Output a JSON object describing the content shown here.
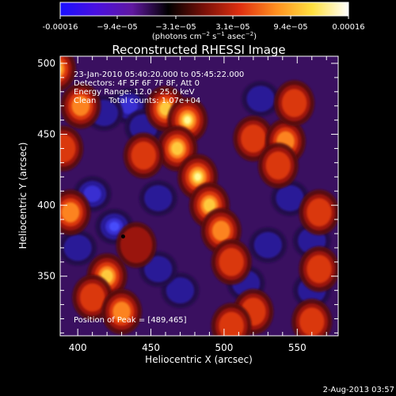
{
  "chart_data": {
    "type": "heatmap",
    "title": "Reconstructed RHESSI Image",
    "xlabel": "Heliocentric X (arcsec)",
    "ylabel": "Heliocentric Y (arcsec)",
    "xlim": [
      388,
      578
    ],
    "ylim": [
      308,
      505
    ],
    "x_ticks": [
      400,
      450,
      500,
      550
    ],
    "x_tick_labels": [
      "400",
      "450",
      "500",
      "550"
    ],
    "y_ticks": [
      350,
      400,
      450,
      500
    ],
    "y_tick_labels": [
      "350",
      "400",
      "450",
      "500"
    ],
    "colorbar": {
      "range": [
        -0.00016,
        0.00016
      ],
      "tick_labels": [
        "-0.00016",
        "−9.4e−05",
        "−3.1e−05",
        "3.1e−05",
        "9.4e−05",
        "0.00016"
      ],
      "units_prefix": "(photons cm",
      "units_exp1": "−2",
      "units_mid": " s",
      "units_exp2": "−1",
      "units_mid2": " asec",
      "units_exp3": "−2",
      "units_suffix": ")",
      "colors": [
        "#1a10ff",
        "#4a10e0",
        "#6018a0",
        "#000000",
        "#7a1008",
        "#e03010",
        "#ff9020",
        "#ffe040",
        "#ffffff"
      ]
    },
    "annotations": [
      "23-Jan-2010 05:40:20.000 to 05:45:22.000",
      "Detectors: 4F 5F 6F 7F 8F, Att 0",
      "Energy Range: 12.0 - 25.0 keV",
      "Clean     Total counts: 1.07e+04"
    ],
    "peak_label": "Position of Peak = [489,465]",
    "bright_regions": [
      {
        "x": 385,
        "y": 496,
        "level": 0.85
      },
      {
        "x": 402,
        "y": 470,
        "level": 0.65
      },
      {
        "x": 390,
        "y": 440,
        "level": 0.55
      },
      {
        "x": 395,
        "y": 395,
        "level": 0.7
      },
      {
        "x": 460,
        "y": 468,
        "level": 0.8
      },
      {
        "x": 475,
        "y": 460,
        "level": 1.0
      },
      {
        "x": 468,
        "y": 440,
        "level": 0.9
      },
      {
        "x": 482,
        "y": 420,
        "level": 0.95
      },
      {
        "x": 490,
        "y": 400,
        "level": 0.85
      },
      {
        "x": 498,
        "y": 382,
        "level": 0.7
      },
      {
        "x": 505,
        "y": 360,
        "level": 0.55
      },
      {
        "x": 520,
        "y": 447,
        "level": 0.55
      },
      {
        "x": 542,
        "y": 445,
        "level": 0.6
      },
      {
        "x": 548,
        "y": 472,
        "level": 0.55
      },
      {
        "x": 537,
        "y": 428,
        "level": 0.5
      },
      {
        "x": 445,
        "y": 435,
        "level": 0.45
      },
      {
        "x": 420,
        "y": 350,
        "level": 0.75
      },
      {
        "x": 410,
        "y": 335,
        "level": 0.55
      },
      {
        "x": 430,
        "y": 325,
        "level": 0.6
      },
      {
        "x": 565,
        "y": 395,
        "level": 0.55
      },
      {
        "x": 565,
        "y": 355,
        "level": 0.5
      },
      {
        "x": 520,
        "y": 325,
        "level": 0.45
      },
      {
        "x": 560,
        "y": 318,
        "level": 0.5
      },
      {
        "x": 505,
        "y": 315,
        "level": 0.55
      },
      {
        "x": 440,
        "y": 372,
        "level": 0.3
      }
    ],
    "dim_regions": [
      {
        "x": 410,
        "y": 408,
        "level": 0.85
      },
      {
        "x": 425,
        "y": 385,
        "level": 0.9
      },
      {
        "x": 435,
        "y": 470,
        "level": 0.7
      },
      {
        "x": 445,
        "y": 455,
        "level": 0.55
      },
      {
        "x": 418,
        "y": 465,
        "level": 0.5
      },
      {
        "x": 545,
        "y": 405,
        "level": 0.55
      },
      {
        "x": 560,
        "y": 375,
        "level": 0.5
      },
      {
        "x": 515,
        "y": 345,
        "level": 0.45
      },
      {
        "x": 560,
        "y": 340,
        "level": 0.5
      },
      {
        "x": 470,
        "y": 340,
        "level": 0.45
      },
      {
        "x": 455,
        "y": 355,
        "level": 0.4
      },
      {
        "x": 530,
        "y": 372,
        "level": 0.45
      },
      {
        "x": 400,
        "y": 370,
        "level": 0.4
      },
      {
        "x": 455,
        "y": 405,
        "level": 0.45
      },
      {
        "x": 525,
        "y": 475,
        "level": 0.45
      }
    ],
    "marker": {
      "x": 431,
      "y": 378
    }
  },
  "footer_date": "2-Aug-2013 03:57"
}
